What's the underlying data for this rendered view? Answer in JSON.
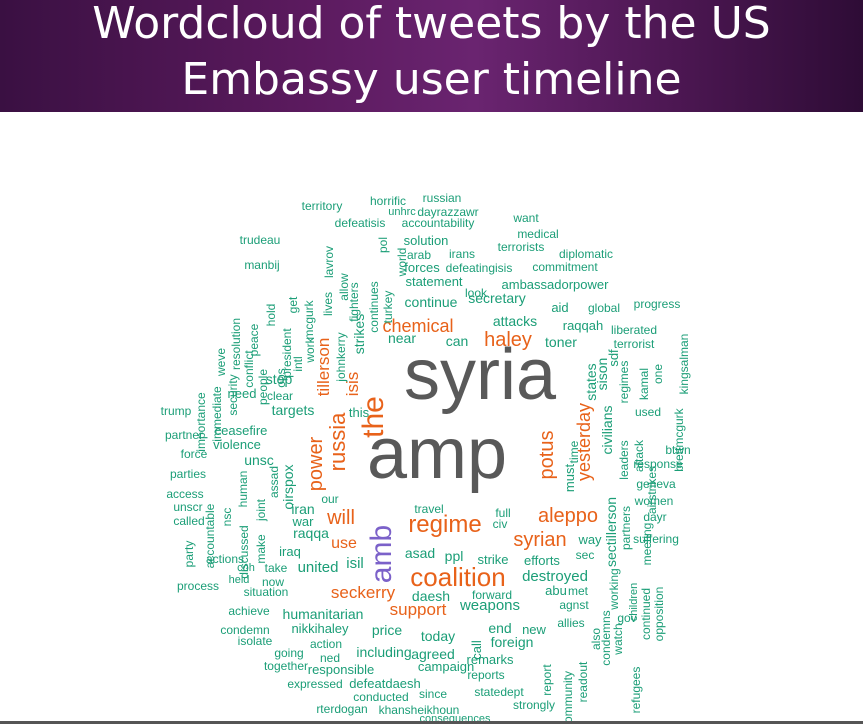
{
  "title": {
    "line1": "Wordcloud of tweets by the US",
    "line2": "Embassy user timeline"
  },
  "colors": {
    "header_start": "#3a1042",
    "header_end": "#2e0c36",
    "title_text": "#ffffff",
    "big": "#595959",
    "purple": "#7b61c9",
    "orange": "#e8621a",
    "teal": "#1b9e77"
  },
  "words": [
    {
      "text": "syria",
      "tier": "big"
    },
    {
      "text": "amp",
      "tier": "big"
    },
    {
      "text": "amb",
      "tier": "purple"
    },
    {
      "text": "the",
      "tier": "orange"
    },
    {
      "text": "coalition",
      "tier": "orange"
    },
    {
      "text": "regime",
      "tier": "orange"
    },
    {
      "text": "russia",
      "tier": "orange"
    },
    {
      "text": "haley",
      "tier": "orange"
    },
    {
      "text": "aleppo",
      "tier": "orange"
    },
    {
      "text": "syrian",
      "tier": "orange"
    },
    {
      "text": "potus",
      "tier": "orange"
    },
    {
      "text": "chemical",
      "tier": "orange"
    },
    {
      "text": "power",
      "tier": "orange"
    },
    {
      "text": "yesterday",
      "tier": "orange"
    },
    {
      "text": "will",
      "tier": "orange"
    },
    {
      "text": "support",
      "tier": "orange"
    },
    {
      "text": "seckerry",
      "tier": "orange"
    },
    {
      "text": "tillerson",
      "tier": "orange"
    },
    {
      "text": "isis",
      "tier": "orange"
    },
    {
      "text": "use",
      "tier": "orange"
    },
    {
      "text": "strikes",
      "tier": "teal"
    },
    {
      "text": "targets",
      "tier": "teal"
    },
    {
      "text": "destroyed",
      "tier": "teal"
    },
    {
      "text": "weapons",
      "tier": "teal"
    },
    {
      "text": "daesh",
      "tier": "teal"
    },
    {
      "text": "humanitarian",
      "tier": "teal"
    },
    {
      "text": "isil",
      "tier": "teal"
    },
    {
      "text": "united",
      "tier": "teal"
    },
    {
      "text": "raqqa",
      "tier": "teal"
    },
    {
      "text": "iran",
      "tier": "teal"
    },
    {
      "text": "asad",
      "tier": "teal"
    },
    {
      "text": "ppl",
      "tier": "teal"
    },
    {
      "text": "secretary",
      "tier": "teal"
    },
    {
      "text": "continue",
      "tier": "teal"
    },
    {
      "text": "statement",
      "tier": "teal"
    },
    {
      "text": "ambassadorpower",
      "tier": "teal"
    },
    {
      "text": "attacks",
      "tier": "teal"
    },
    {
      "text": "raqqah",
      "tier": "teal"
    },
    {
      "text": "near",
      "tier": "teal"
    },
    {
      "text": "can",
      "tier": "teal"
    },
    {
      "text": "toner",
      "tier": "teal"
    },
    {
      "text": "aid",
      "tier": "teal"
    },
    {
      "text": "global",
      "tier": "teal"
    },
    {
      "text": "progress",
      "tier": "teal"
    },
    {
      "text": "liberated",
      "tier": "teal"
    },
    {
      "text": "terrorist",
      "tier": "teal"
    },
    {
      "text": "sison",
      "tier": "teal"
    },
    {
      "text": "civilians",
      "tier": "teal"
    },
    {
      "text": "sdf",
      "tier": "teal"
    },
    {
      "text": "states",
      "tier": "teal"
    },
    {
      "text": "must",
      "tier": "teal"
    },
    {
      "text": "sectillerson",
      "tier": "teal"
    },
    {
      "text": "way",
      "tier": "teal"
    },
    {
      "text": "sec",
      "tier": "teal"
    },
    {
      "text": "abu",
      "tier": "teal"
    },
    {
      "text": "met",
      "tier": "teal"
    },
    {
      "text": "agnst",
      "tier": "teal"
    },
    {
      "text": "efforts",
      "tier": "teal"
    },
    {
      "text": "strike",
      "tier": "teal"
    },
    {
      "text": "forward",
      "tier": "teal"
    },
    {
      "text": "end",
      "tier": "teal"
    },
    {
      "text": "new",
      "tier": "teal"
    },
    {
      "text": "call",
      "tier": "teal"
    },
    {
      "text": "today",
      "tier": "teal"
    },
    {
      "text": "foreign",
      "tier": "teal"
    },
    {
      "text": "allies",
      "tier": "teal"
    },
    {
      "text": "remarks",
      "tier": "teal"
    },
    {
      "text": "reports",
      "tier": "teal"
    },
    {
      "text": "campaign",
      "tier": "teal"
    },
    {
      "text": "agreed",
      "tier": "teal"
    },
    {
      "text": "including",
      "tier": "teal"
    },
    {
      "text": "price",
      "tier": "teal"
    },
    {
      "text": "nikkihaley",
      "tier": "teal"
    },
    {
      "text": "action",
      "tier": "teal"
    },
    {
      "text": "ned",
      "tier": "teal"
    },
    {
      "text": "responsible",
      "tier": "teal"
    },
    {
      "text": "together",
      "tier": "teal"
    },
    {
      "text": "going",
      "tier": "teal"
    },
    {
      "text": "expressed",
      "tier": "teal"
    },
    {
      "text": "defeatdaesh",
      "tier": "teal"
    },
    {
      "text": "conducted",
      "tier": "teal"
    },
    {
      "text": "since",
      "tier": "teal"
    },
    {
      "text": "statedept",
      "tier": "teal"
    },
    {
      "text": "strongly",
      "tier": "teal"
    },
    {
      "text": "rterdogan",
      "tier": "teal"
    },
    {
      "text": "khansheikhoun",
      "tier": "teal"
    },
    {
      "text": "consequences",
      "tier": "teal"
    },
    {
      "text": "condemn",
      "tier": "teal"
    },
    {
      "text": "isolate",
      "tier": "teal"
    },
    {
      "text": "achieve",
      "tier": "teal"
    },
    {
      "text": "process",
      "tier": "teal"
    },
    {
      "text": "situation",
      "tier": "teal"
    },
    {
      "text": "held",
      "tier": "teal"
    },
    {
      "text": "now",
      "tier": "teal"
    },
    {
      "text": "coh",
      "tier": "teal"
    },
    {
      "text": "take",
      "tier": "teal"
    },
    {
      "text": "actions",
      "tier": "teal"
    },
    {
      "text": "iraq",
      "tier": "teal"
    },
    {
      "text": "war",
      "tier": "teal"
    },
    {
      "text": "make",
      "tier": "teal"
    },
    {
      "text": "joint",
      "tier": "teal"
    },
    {
      "text": "party",
      "tier": "teal"
    },
    {
      "text": "called",
      "tier": "teal"
    },
    {
      "text": "unscr",
      "tier": "teal"
    },
    {
      "text": "access",
      "tier": "teal"
    },
    {
      "text": "parties",
      "tier": "teal"
    },
    {
      "text": "force",
      "tier": "teal"
    },
    {
      "text": "partner",
      "tier": "teal"
    },
    {
      "text": "ceasefire",
      "tier": "teal"
    },
    {
      "text": "violence",
      "tier": "teal"
    },
    {
      "text": "human",
      "tier": "teal"
    },
    {
      "text": "nsc",
      "tier": "teal"
    },
    {
      "text": "accountable",
      "tier": "teal"
    },
    {
      "text": "discussed",
      "tier": "teal"
    },
    {
      "text": "unsc",
      "tier": "teal"
    },
    {
      "text": "assad",
      "tier": "teal"
    },
    {
      "text": "oirspox",
      "tier": "teal"
    },
    {
      "text": "our",
      "tier": "teal"
    },
    {
      "text": "travel",
      "tier": "teal"
    },
    {
      "text": "full",
      "tier": "teal"
    },
    {
      "text": "civ",
      "tier": "teal"
    },
    {
      "text": "stop",
      "tier": "teal"
    },
    {
      "text": "clear",
      "tier": "teal"
    },
    {
      "text": "need",
      "tier": "teal"
    },
    {
      "text": "this",
      "tier": "teal"
    },
    {
      "text": "trump",
      "tier": "teal"
    },
    {
      "text": "security",
      "tier": "teal"
    },
    {
      "text": "immediate",
      "tier": "teal"
    },
    {
      "text": "importance",
      "tier": "teal"
    },
    {
      "text": "weve",
      "tier": "teal"
    },
    {
      "text": "resolution",
      "tier": "teal"
    },
    {
      "text": "conflict",
      "tier": "teal"
    },
    {
      "text": "peace",
      "tier": "teal"
    },
    {
      "text": "people",
      "tier": "teal"
    },
    {
      "text": "ops",
      "tier": "teal"
    },
    {
      "text": "president",
      "tier": "teal"
    },
    {
      "text": "hold",
      "tier": "teal"
    },
    {
      "text": "get",
      "tier": "teal"
    },
    {
      "text": "intl",
      "tier": "teal"
    },
    {
      "text": "work",
      "tier": "teal"
    },
    {
      "text": "mcgurk",
      "tier": "teal"
    },
    {
      "text": "lives",
      "tier": "teal"
    },
    {
      "text": "allow",
      "tier": "teal"
    },
    {
      "text": "lavrov",
      "tier": "teal"
    },
    {
      "text": "johnkerry",
      "tier": "teal"
    },
    {
      "text": "fighters",
      "tier": "teal"
    },
    {
      "text": "continues",
      "tier": "teal"
    },
    {
      "text": "turkey",
      "tier": "teal"
    },
    {
      "text": "pol",
      "tier": "teal"
    },
    {
      "text": "world",
      "tier": "teal"
    },
    {
      "text": "trudeau",
      "tier": "teal"
    },
    {
      "text": "manbij",
      "tier": "teal"
    },
    {
      "text": "territory",
      "tier": "teal"
    },
    {
      "text": "horrific",
      "tier": "teal"
    },
    {
      "text": "unhrc",
      "tier": "teal"
    },
    {
      "text": "defeatisis",
      "tier": "teal"
    },
    {
      "text": "russian",
      "tier": "teal"
    },
    {
      "text": "dayrazzawr",
      "tier": "teal"
    },
    {
      "text": "accountability",
      "tier": "teal"
    },
    {
      "text": "want",
      "tier": "teal"
    },
    {
      "text": "solution",
      "tier": "teal"
    },
    {
      "text": "medical",
      "tier": "teal"
    },
    {
      "text": "terrorists",
      "tier": "teal"
    },
    {
      "text": "arab",
      "tier": "teal"
    },
    {
      "text": "irans",
      "tier": "teal"
    },
    {
      "text": "diplomatic",
      "tier": "teal"
    },
    {
      "text": "forces",
      "tier": "teal"
    },
    {
      "text": "defeatingisis",
      "tier": "teal"
    },
    {
      "text": "commitment",
      "tier": "teal"
    },
    {
      "text": "look",
      "tier": "teal"
    },
    {
      "text": "regimes",
      "tier": "teal"
    },
    {
      "text": "kamal",
      "tier": "teal"
    },
    {
      "text": "one",
      "tier": "teal"
    },
    {
      "text": "kingsalman",
      "tier": "teal"
    },
    {
      "text": "used",
      "tier": "teal"
    },
    {
      "text": "brettmcgurk",
      "tier": "teal"
    },
    {
      "text": "btwn",
      "tier": "teal"
    },
    {
      "text": "response",
      "tier": "teal"
    },
    {
      "text": "geneva",
      "tier": "teal"
    },
    {
      "text": "women",
      "tier": "teal"
    },
    {
      "text": "dayr",
      "tier": "teal"
    },
    {
      "text": "suffering",
      "tier": "teal"
    },
    {
      "text": "time",
      "tier": "teal"
    },
    {
      "text": "leaders",
      "tier": "teal"
    },
    {
      "text": "attack",
      "tier": "teal"
    },
    {
      "text": "airstrikes",
      "tier": "teal"
    },
    {
      "text": "partners",
      "tier": "teal"
    },
    {
      "text": "working",
      "tier": "teal"
    },
    {
      "text": "meeting",
      "tier": "teal"
    },
    {
      "text": "children",
      "tier": "teal"
    },
    {
      "text": "continued",
      "tier": "teal"
    },
    {
      "text": "opposition",
      "tier": "teal"
    },
    {
      "text": "condemns",
      "tier": "teal"
    },
    {
      "text": "watch",
      "tier": "teal"
    },
    {
      "text": "gov",
      "tier": "teal"
    },
    {
      "text": "also",
      "tier": "teal"
    },
    {
      "text": "refugees",
      "tier": "teal"
    },
    {
      "text": "community",
      "tier": "teal"
    },
    {
      "text": "readout",
      "tier": "teal"
    },
    {
      "text": "report",
      "tier": "teal"
    }
  ]
}
